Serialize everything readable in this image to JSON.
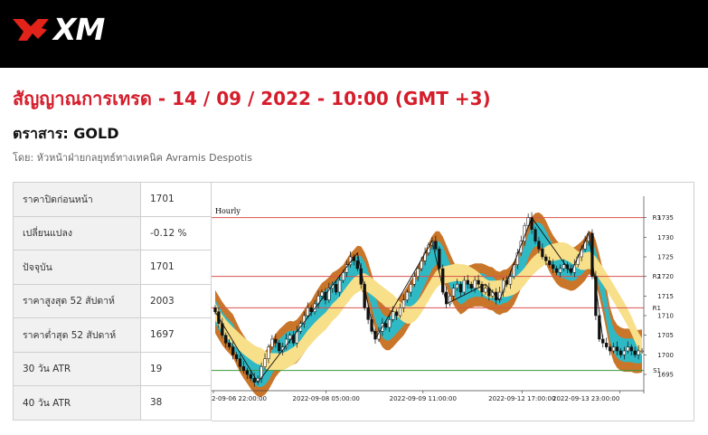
{
  "header": {
    "brand": "XM",
    "logo_name": "xm-logo"
  },
  "title": "สัญญาณการเทรด - 14 / 09 / 2022 - 10:00 (GMT +3)",
  "instrument": "ตราสาร: GOLD",
  "byline": "โดย: หัวหน้าฝ่ายกลยุทธ์ทางเทคนิค Avramis Despotis",
  "stats": [
    {
      "label": "ราคาปิดก่อนหน้า",
      "value": "1701"
    },
    {
      "label": "เปลี่ยนแปลง",
      "value": "-0.12 %"
    },
    {
      "label": "ปัจจุบัน",
      "value": "1701"
    },
    {
      "label": "ราคาสูงสุด 52 สัปดาห์",
      "value": "2003"
    },
    {
      "label": "ราคาต่ำสุด 52 สัปดาห์",
      "value": "1697"
    },
    {
      "label": "30 วัน ATR",
      "value": "19"
    },
    {
      "label": "40 วัน ATR",
      "value": "38"
    }
  ],
  "chart_data": {
    "type": "candlestick",
    "period_label": "Hourly",
    "y_ticks": [
      1735,
      1730,
      1725,
      1720,
      1715,
      1710,
      1705,
      1700,
      1695
    ],
    "ylim": [
      1692,
      1737
    ],
    "x_ticks": [
      "2-09-06 22:00:00",
      "2022-09-08 05:00:00",
      "2022-09-09 11:00:00",
      "2022-09-12 17:00:00",
      "2022-09-13 23:00:00"
    ],
    "levels": [
      {
        "name": "R3",
        "value": 1735,
        "color": "#d9534f"
      },
      {
        "name": "R2",
        "value": 1720,
        "color": "#d9534f"
      },
      {
        "name": "R1",
        "value": 1712,
        "color": "#d9534f"
      },
      {
        "name": "S1",
        "value": 1696,
        "color": "#3a9a3a"
      }
    ],
    "close_series": [
      1711,
      1708,
      1705,
      1703,
      1702,
      1700,
      1699,
      1697,
      1696,
      1695,
      1694,
      1693,
      1694,
      1697,
      1699,
      1702,
      1704,
      1703,
      1701,
      1702,
      1704,
      1705,
      1703,
      1706,
      1708,
      1710,
      1712,
      1711,
      1713,
      1715,
      1716,
      1714,
      1717,
      1718,
      1716,
      1719,
      1721,
      1723,
      1725,
      1724,
      1722,
      1718,
      1712,
      1709,
      1706,
      1704,
      1706,
      1708,
      1707,
      1709,
      1711,
      1710,
      1712,
      1714,
      1716,
      1718,
      1720,
      1722,
      1724,
      1726,
      1728,
      1729,
      1727,
      1722,
      1716,
      1713,
      1715,
      1717,
      1718,
      1716,
      1719,
      1718,
      1717,
      1719,
      1718,
      1716,
      1717,
      1715,
      1716,
      1714,
      1716,
      1719,
      1718,
      1720,
      1723,
      1726,
      1729,
      1733,
      1735,
      1732,
      1729,
      1727,
      1725,
      1724,
      1723,
      1722,
      1721,
      1722,
      1723,
      1722,
      1721,
      1723,
      1725,
      1727,
      1729,
      1731,
      1720,
      1710,
      1704,
      1703,
      1702,
      1701,
      1702,
      1701,
      1700,
      1701,
      1702,
      1701,
      1700,
      1701,
      1701
    ],
    "zigzag": [
      [
        0,
        1711
      ],
      [
        12,
        1693
      ],
      [
        40,
        1726
      ],
      [
        45,
        1704
      ],
      [
        61,
        1729
      ],
      [
        65,
        1713
      ],
      [
        76,
        1718
      ],
      [
        80,
        1714
      ],
      [
        89,
        1735
      ],
      [
        100,
        1721
      ],
      [
        105,
        1731
      ],
      [
        109,
        1704
      ]
    ]
  }
}
